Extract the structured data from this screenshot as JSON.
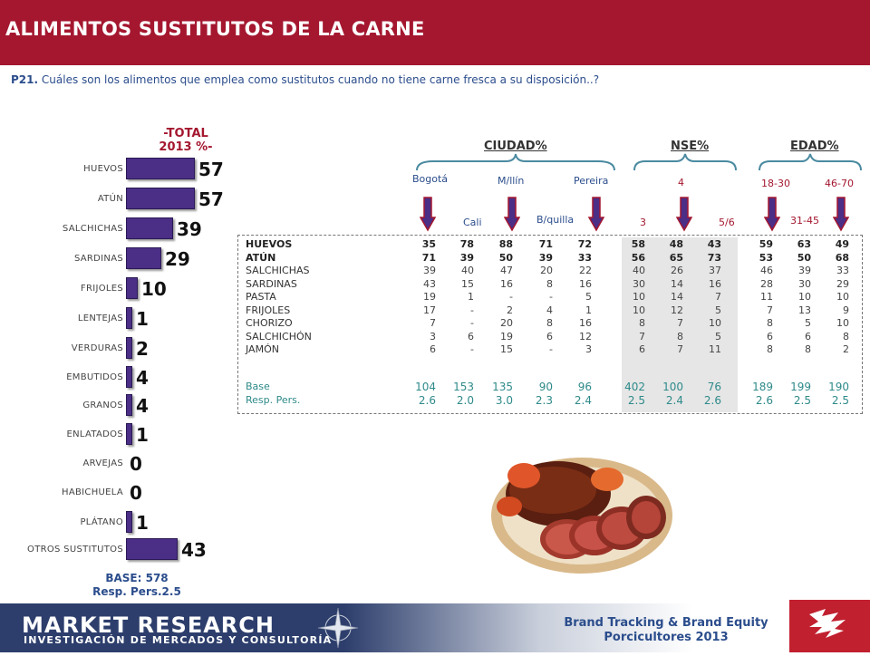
{
  "header": {
    "title": "ALIMENTOS SUSTITUTOS DE LA CARNE"
  },
  "question": {
    "code": "P21.",
    "text": "Cuáles son los alimentos que emplea como sustitutos cuando no tiene carne fresca a su disposición..?"
  },
  "total_header": {
    "line1": "-TOTAL",
    "line2": "2013 %-"
  },
  "chart_data": {
    "type": "bar",
    "orientation": "horizontal",
    "title": "-TOTAL 2013 %-",
    "categories": [
      "HUEVOS",
      "ATÚN",
      "SALCHICHAS",
      "SARDINAS",
      "FRIJOLES",
      "LENTEJAS",
      "VERDURAS",
      "EMBUTIDOS",
      "GRANOS",
      "ENLATADOS",
      "ARVEJAS",
      "HABICHUELA",
      "PLÁTANO",
      "OTROS SUSTITUTOS"
    ],
    "values": [
      57,
      57,
      39,
      29,
      10,
      1,
      2,
      4,
      4,
      1,
      0,
      0,
      1,
      43
    ],
    "xlim": [
      0,
      57
    ],
    "bar_color": "#4b2e86"
  },
  "total_base": {
    "line1": "BASE:  578",
    "line2": "Resp. Pers.2.5"
  },
  "groups": [
    {
      "label": "CIUDAD%"
    },
    {
      "label": "NSE%"
    },
    {
      "label": "EDAD%"
    }
  ],
  "columns": {
    "bogota": "Bogotá",
    "cali": "Cali",
    "mllin": "M/llín",
    "bquilla": "B/quilla",
    "pereira": "Pereira",
    "nse3": "3",
    "nse4": "4",
    "nse56": "5/6",
    "e1830": "18-30",
    "e3145": "31-45",
    "e4670": "46-70"
  },
  "table": {
    "rows": [
      {
        "label": "HUEVOS",
        "bold": true,
        "values": [
          "35",
          "78",
          "88",
          "71",
          "72",
          "58",
          "48",
          "43",
          "59",
          "63",
          "49"
        ]
      },
      {
        "label": "ATÚN",
        "bold": true,
        "values": [
          "71",
          "39",
          "50",
          "39",
          "33",
          "56",
          "65",
          "73",
          "53",
          "50",
          "68"
        ]
      },
      {
        "label": "SALCHICHAS",
        "bold": false,
        "values": [
          "39",
          "40",
          "47",
          "20",
          "22",
          "40",
          "26",
          "37",
          "46",
          "39",
          "33"
        ]
      },
      {
        "label": "SARDINAS",
        "bold": false,
        "values": [
          "43",
          "15",
          "16",
          "8",
          "16",
          "30",
          "14",
          "16",
          "28",
          "30",
          "29"
        ]
      },
      {
        "label": "PASTA",
        "bold": false,
        "values": [
          "19",
          "1",
          "-",
          "-",
          "5",
          "10",
          "14",
          "7",
          "11",
          "10",
          "10"
        ]
      },
      {
        "label": "FRIJOLES",
        "bold": false,
        "values": [
          "17",
          "-",
          "2",
          "4",
          "1",
          "10",
          "12",
          "5",
          "7",
          "13",
          "9"
        ]
      },
      {
        "label": "CHORIZO",
        "bold": false,
        "values": [
          "7",
          "-",
          "20",
          "8",
          "16",
          "8",
          "7",
          "10",
          "8",
          "5",
          "10"
        ]
      },
      {
        "label": "SALCHICHÓN",
        "bold": false,
        "values": [
          "3",
          "6",
          "19",
          "6",
          "12",
          "7",
          "8",
          "5",
          "6",
          "6",
          "8"
        ]
      },
      {
        "label": "JAMÓN",
        "bold": false,
        "values": [
          "6",
          "-",
          "15",
          "-",
          "3",
          "6",
          "7",
          "11",
          "8",
          "8",
          "2"
        ]
      }
    ],
    "base": {
      "label": "Base",
      "values": [
        "104",
        "153",
        "135",
        "90",
        "96",
        "402",
        "100",
        "76",
        "189",
        "199",
        "190"
      ]
    },
    "resp": {
      "label": "Resp. Pers.",
      "values": [
        "2.6",
        "2.0",
        "3.0",
        "2.3",
        "2.4",
        "2.5",
        "2.4",
        "2.6",
        "2.6",
        "2.5",
        "2.5"
      ]
    }
  },
  "footer": {
    "mr_title": "MARKET RESEARCH",
    "mr_sub": "INVESTIGACIÓN DE MERCADOS Y CONSULTORÍA",
    "brand_line1": "Brand Tracking & Brand Equity",
    "brand_line2": "Porcicultores 2013"
  },
  "colors": {
    "header": "#a4172f",
    "accent_blue": "#2b4d8c",
    "bar": "#4b2e86",
    "arrow": "#4b2e86",
    "footer": "#2d3e6c"
  },
  "icons": [
    "compass-rose-icon",
    "company-logo-icon",
    "arrow-down-icon"
  ]
}
